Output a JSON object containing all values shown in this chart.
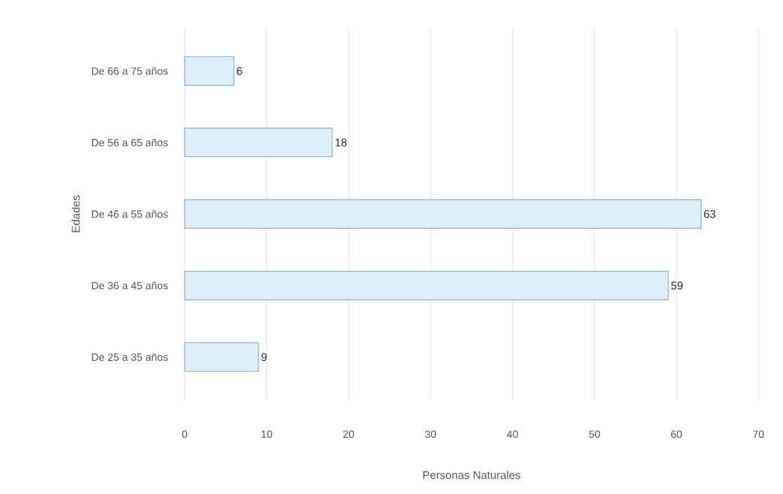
{
  "chart_data": {
    "type": "bar",
    "orientation": "horizontal",
    "xlabel": "Personas Naturales",
    "ylabel": "Edades",
    "categories": [
      "De 66 a 75 años",
      "De 56 a 65 años",
      "De 46 a 55 años",
      "De 36 a 45 años",
      "De 25 a 35 años"
    ],
    "values": [
      6,
      18,
      63,
      59,
      9
    ],
    "color": "#ddeff6",
    "xlim": [
      0,
      70
    ],
    "xticks": [
      0,
      10,
      20,
      30,
      40,
      50,
      60,
      70
    ],
    "grid": "x",
    "data_labels": true
  }
}
